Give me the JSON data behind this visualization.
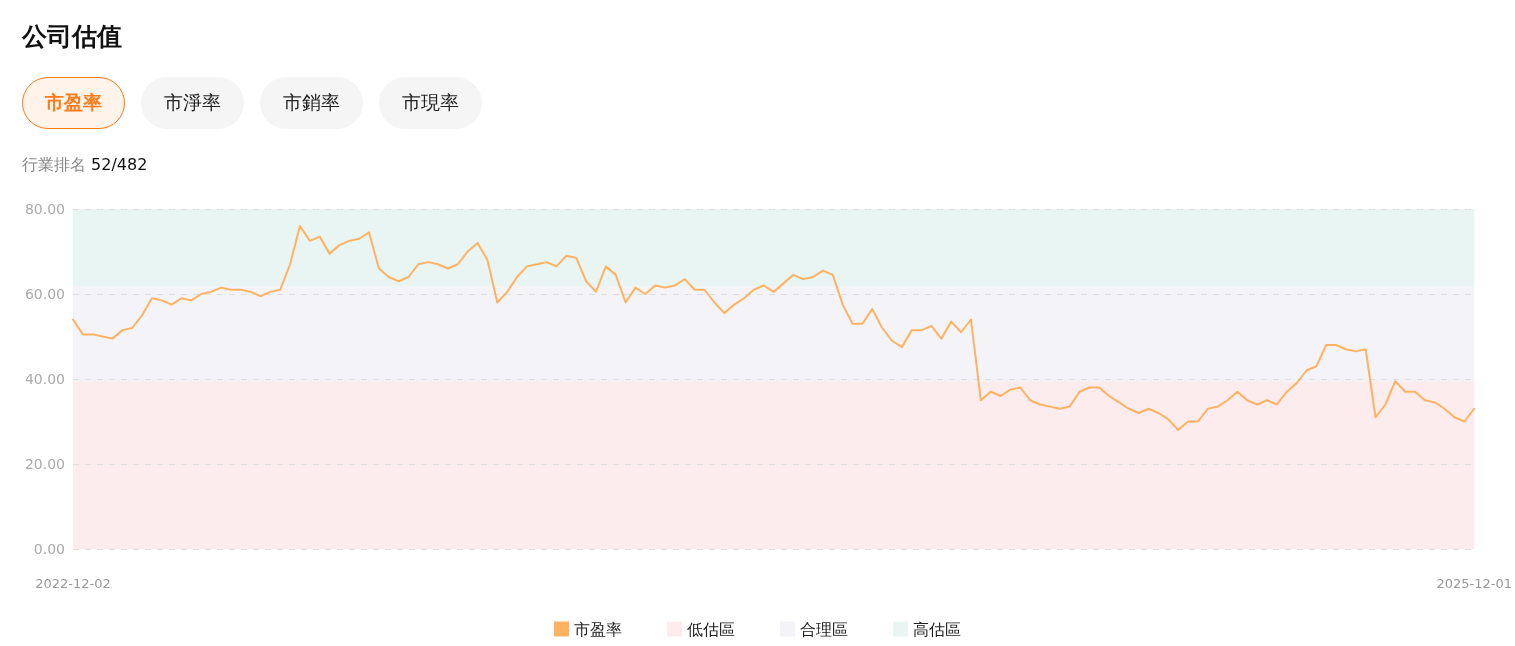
{
  "chart_data": {
    "type": "line",
    "title": "公司估值",
    "annotations": [
      "市盈率",
      "市淨率",
      "市銷率",
      "市現率",
      "行業排名 52/482"
    ],
    "categories": [
      "2022-12-02",
      null,
      null,
      null,
      null,
      null,
      null,
      null,
      null,
      null,
      null,
      null,
      null,
      null,
      null,
      null,
      null,
      null,
      null,
      null,
      null,
      null,
      null,
      null,
      null,
      null,
      null,
      null,
      null,
      null,
      null,
      null,
      null,
      null,
      null,
      null,
      null,
      null,
      null,
      null,
      null,
      null,
      null,
      null,
      null,
      null,
      null,
      null,
      null,
      null,
      null,
      null,
      null,
      null,
      null,
      null,
      null,
      null,
      null,
      null,
      null,
      null,
      null,
      null,
      null,
      null,
      null,
      null,
      null,
      null,
      null,
      null,
      null,
      null,
      null,
      null,
      null,
      null,
      null,
      null,
      null,
      null,
      null,
      null,
      null,
      null,
      null,
      null,
      null,
      null,
      null,
      null,
      null,
      null,
      null,
      null,
      null,
      null,
      null,
      null,
      null,
      null,
      null,
      null,
      null,
      null,
      null,
      null,
      null,
      null,
      null,
      null,
      null,
      null,
      null,
      null,
      null,
      null,
      null,
      null,
      null,
      null,
      null,
      null,
      null,
      null,
      null,
      null,
      null,
      null,
      null,
      null,
      null,
      null,
      null,
      null,
      null,
      null,
      null,
      null,
      null,
      null,
      "2025-12-01"
    ],
    "series": [
      {
        "name": "市盈率",
        "color": "#ffb262",
        "values": [
          54,
          50.5,
          50.5,
          50,
          49.5,
          51.5,
          52,
          55,
          59,
          58.5,
          57.5,
          59,
          58.5,
          60,
          60.5,
          61.5,
          61,
          61,
          60.5,
          59.5,
          60.5,
          61,
          67,
          76,
          72.5,
          73.5,
          69.5,
          71.5,
          72.5,
          73,
          74.5,
          66,
          64,
          63,
          64,
          67,
          67.5,
          67,
          66,
          67,
          70,
          72,
          68,
          58,
          60.5,
          64,
          66.5,
          67,
          67.5,
          66.5,
          69,
          68.5,
          63,
          60.5,
          66.5,
          64.5,
          58,
          61.5,
          60,
          62,
          61.5,
          62,
          63.5,
          61,
          61,
          58,
          55.5,
          57.5,
          59,
          61,
          62,
          60.5,
          62.5,
          64.5,
          63.5,
          64,
          65.5,
          64.5,
          57.5,
          53,
          53,
          56.5,
          52,
          49,
          47.5,
          51.5,
          51.5,
          52.5,
          49.5,
          53.5,
          51,
          54,
          35,
          37,
          36,
          37.5,
          38,
          35,
          34,
          33.5,
          33,
          33.5,
          37,
          38,
          38,
          36,
          34.5,
          33,
          32,
          33,
          32,
          30.5,
          28,
          30,
          30,
          33,
          33.5,
          35,
          37,
          35,
          34,
          35,
          34,
          37,
          39,
          42,
          43,
          48,
          48,
          47,
          46.5,
          47,
          31,
          34,
          39.5,
          37,
          37,
          35,
          34.5,
          33,
          31,
          30,
          33
        ]
      }
    ],
    "bands": [
      {
        "axis": "y",
        "from": 0,
        "to": 39.5,
        "label": "低估區",
        "color": "#fdecee"
      },
      {
        "axis": "y",
        "from": 39.5,
        "to": 61.9,
        "label": "合理區",
        "color": "#f4f4f8"
      },
      {
        "axis": "y",
        "from": 61.9,
        "to": 80,
        "label": "高估區",
        "color": "#e8f5f2"
      }
    ],
    "ylim": [
      0,
      80
    ],
    "yticks": [
      {
        "value": 0,
        "label": "0.00"
      },
      {
        "value": 20,
        "label": "20.00"
      },
      {
        "value": 40,
        "label": "40.00"
      },
      {
        "value": 60,
        "label": "60.00"
      },
      {
        "value": 80,
        "label": "80.00"
      }
    ],
    "grid": "y",
    "legend": "bottom",
    "marker": "none",
    "line_style": "solid"
  }
}
